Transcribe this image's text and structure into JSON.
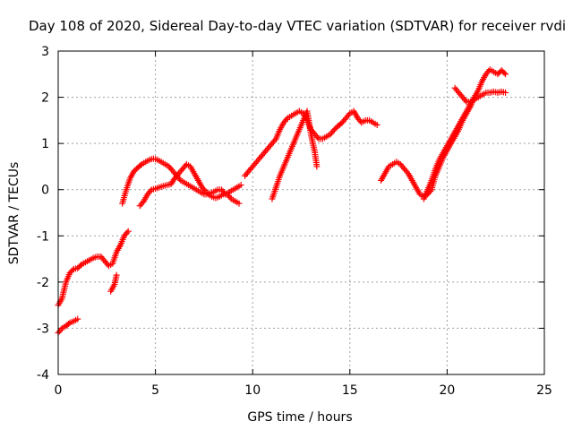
{
  "chart_data": {
    "type": "scatter",
    "title": "Day 108 of 2020, Sidereal Day-to-day VTEC variation (SDTVAR) for receiver rvdi",
    "xlabel": "GPS time / hours",
    "ylabel": "SDTVAR / TECUs",
    "xlim": [
      0,
      25
    ],
    "ylim": [
      -4,
      3
    ],
    "xticks": [
      0,
      5,
      10,
      15,
      20,
      25
    ],
    "yticks": [
      -4,
      -3,
      -2,
      -1,
      0,
      1,
      2,
      3
    ],
    "x_tick_labels": [
      "0",
      "5",
      "10",
      "15",
      "20",
      "25"
    ],
    "y_tick_labels": [
      "-4",
      "-3",
      "-2",
      "-1",
      "0",
      "1",
      "2",
      "3"
    ],
    "grid": true,
    "marker": "+",
    "marker_color": "#ff0000",
    "series": [
      {
        "points": [
          [
            0.0,
            -3.1
          ],
          [
            0.2,
            -3.0
          ],
          [
            0.4,
            -2.95
          ],
          [
            0.6,
            -2.88
          ],
          [
            0.8,
            -2.85
          ],
          [
            1.0,
            -2.8
          ]
        ]
      },
      {
        "points": [
          [
            0.0,
            -2.5
          ],
          [
            0.2,
            -2.35
          ],
          [
            0.4,
            -2.0
          ],
          [
            0.6,
            -1.8
          ],
          [
            0.8,
            -1.72
          ],
          [
            1.0,
            -1.7
          ],
          [
            1.2,
            -1.62
          ],
          [
            1.5,
            -1.55
          ],
          [
            1.8,
            -1.48
          ],
          [
            2.0,
            -1.45
          ],
          [
            2.2,
            -1.45
          ],
          [
            2.4,
            -1.55
          ],
          [
            2.6,
            -1.65
          ],
          [
            2.8,
            -1.6
          ],
          [
            3.0,
            -1.35
          ],
          [
            3.2,
            -1.2
          ],
          [
            3.4,
            -1.0
          ],
          [
            3.6,
            -0.9
          ]
        ]
      },
      {
        "points": [
          [
            2.7,
            -2.2
          ],
          [
            2.9,
            -2.05
          ],
          [
            3.0,
            -1.85
          ]
        ]
      },
      {
        "points": [
          [
            3.3,
            -0.3
          ],
          [
            3.5,
            0.0
          ],
          [
            3.7,
            0.25
          ],
          [
            3.9,
            0.4
          ],
          [
            4.1,
            0.48
          ],
          [
            4.3,
            0.55
          ],
          [
            4.5,
            0.6
          ],
          [
            4.7,
            0.65
          ],
          [
            4.9,
            0.67
          ],
          [
            5.1,
            0.65
          ],
          [
            5.3,
            0.6
          ],
          [
            5.5,
            0.55
          ],
          [
            5.7,
            0.5
          ],
          [
            5.9,
            0.4
          ],
          [
            6.1,
            0.3
          ],
          [
            6.3,
            0.2
          ],
          [
            6.5,
            0.15
          ],
          [
            6.7,
            0.1
          ],
          [
            6.9,
            0.05
          ],
          [
            7.1,
            0.0
          ],
          [
            7.3,
            -0.05
          ],
          [
            7.5,
            -0.1
          ],
          [
            7.7,
            -0.1
          ],
          [
            7.9,
            -0.15
          ],
          [
            8.1,
            -0.18
          ],
          [
            8.3,
            -0.15
          ],
          [
            8.5,
            -0.1
          ],
          [
            8.7,
            -0.1
          ],
          [
            8.9,
            -0.2
          ],
          [
            9.1,
            -0.25
          ],
          [
            9.3,
            -0.3
          ]
        ]
      },
      {
        "points": [
          [
            4.2,
            -0.35
          ],
          [
            4.4,
            -0.25
          ],
          [
            4.6,
            -0.1
          ],
          [
            4.8,
            0.0
          ],
          [
            5.0,
            0.02
          ],
          [
            5.2,
            0.05
          ],
          [
            5.4,
            0.08
          ],
          [
            5.6,
            0.1
          ],
          [
            5.8,
            0.12
          ],
          [
            6.0,
            0.25
          ],
          [
            6.2,
            0.35
          ],
          [
            6.4,
            0.45
          ],
          [
            6.6,
            0.55
          ],
          [
            6.8,
            0.5
          ],
          [
            7.0,
            0.35
          ],
          [
            7.2,
            0.2
          ],
          [
            7.4,
            0.05
          ],
          [
            7.6,
            -0.05
          ],
          [
            7.8,
            -0.08
          ],
          [
            8.0,
            -0.05
          ],
          [
            8.2,
            0.0
          ],
          [
            8.4,
            0.0
          ],
          [
            8.6,
            -0.1
          ],
          [
            8.8,
            -0.05
          ],
          [
            9.0,
            0.0
          ],
          [
            9.2,
            0.05
          ],
          [
            9.4,
            0.1
          ]
        ]
      },
      {
        "points": [
          [
            9.6,
            0.3
          ],
          [
            9.8,
            0.4
          ],
          [
            10.0,
            0.5
          ],
          [
            10.2,
            0.6
          ],
          [
            10.4,
            0.7
          ],
          [
            10.6,
            0.8
          ],
          [
            10.8,
            0.9
          ],
          [
            11.0,
            1.0
          ],
          [
            11.2,
            1.1
          ],
          [
            11.4,
            1.3
          ],
          [
            11.6,
            1.45
          ],
          [
            11.8,
            1.55
          ],
          [
            12.0,
            1.6
          ],
          [
            12.2,
            1.65
          ],
          [
            12.4,
            1.7
          ],
          [
            12.6,
            1.65
          ],
          [
            12.8,
            1.5
          ],
          [
            13.0,
            1.3
          ],
          [
            13.2,
            1.2
          ],
          [
            13.4,
            1.1
          ],
          [
            13.6,
            1.1
          ],
          [
            13.8,
            1.15
          ],
          [
            14.0,
            1.2
          ],
          [
            14.2,
            1.3
          ],
          [
            14.4,
            1.38
          ],
          [
            14.6,
            1.45
          ],
          [
            14.8,
            1.55
          ],
          [
            15.0,
            1.65
          ],
          [
            15.2,
            1.7
          ],
          [
            15.4,
            1.55
          ],
          [
            15.6,
            1.45
          ],
          [
            15.8,
            1.5
          ],
          [
            16.0,
            1.5
          ],
          [
            16.2,
            1.45
          ],
          [
            16.4,
            1.4
          ]
        ]
      },
      {
        "points": [
          [
            11.0,
            -0.2
          ],
          [
            11.2,
            0.05
          ],
          [
            11.4,
            0.3
          ],
          [
            11.6,
            0.5
          ],
          [
            11.8,
            0.7
          ],
          [
            12.0,
            0.9
          ],
          [
            12.2,
            1.1
          ],
          [
            12.4,
            1.3
          ],
          [
            12.6,
            1.5
          ],
          [
            12.8,
            1.7
          ],
          [
            13.0,
            1.2
          ],
          [
            13.2,
            0.8
          ],
          [
            13.3,
            0.5
          ]
        ]
      },
      {
        "points": [
          [
            16.6,
            0.2
          ],
          [
            16.8,
            0.35
          ],
          [
            17.0,
            0.5
          ],
          [
            17.2,
            0.55
          ],
          [
            17.4,
            0.6
          ],
          [
            17.6,
            0.55
          ],
          [
            17.8,
            0.45
          ],
          [
            18.0,
            0.35
          ],
          [
            18.2,
            0.2
          ],
          [
            18.4,
            0.05
          ],
          [
            18.6,
            -0.1
          ],
          [
            18.8,
            -0.15
          ],
          [
            19.0,
            -0.1
          ],
          [
            19.2,
            0.0
          ],
          [
            19.4,
            0.3
          ],
          [
            19.6,
            0.5
          ],
          [
            19.8,
            0.7
          ],
          [
            20.0,
            0.85
          ],
          [
            20.2,
            1.0
          ],
          [
            20.4,
            1.15
          ],
          [
            20.6,
            1.3
          ],
          [
            20.8,
            1.5
          ],
          [
            21.0,
            1.65
          ],
          [
            21.2,
            1.8
          ],
          [
            21.4,
            2.0
          ],
          [
            21.6,
            2.15
          ],
          [
            21.8,
            2.35
          ],
          [
            22.0,
            2.5
          ],
          [
            22.2,
            2.6
          ],
          [
            22.4,
            2.55
          ],
          [
            22.6,
            2.5
          ],
          [
            22.8,
            2.58
          ],
          [
            23.0,
            2.5
          ]
        ]
      },
      {
        "points": [
          [
            18.8,
            -0.2
          ],
          [
            19.0,
            0.0
          ],
          [
            19.2,
            0.2
          ],
          [
            19.4,
            0.45
          ],
          [
            19.6,
            0.65
          ],
          [
            19.8,
            0.8
          ],
          [
            20.0,
            0.95
          ],
          [
            20.2,
            1.1
          ],
          [
            20.4,
            1.25
          ],
          [
            20.6,
            1.4
          ],
          [
            20.8,
            1.55
          ],
          [
            21.0,
            1.7
          ],
          [
            21.2,
            1.85
          ],
          [
            21.4,
            2.0
          ]
        ]
      },
      {
        "points": [
          [
            20.4,
            2.2
          ],
          [
            20.6,
            2.1
          ],
          [
            20.8,
            2.0
          ],
          [
            21.0,
            1.9
          ],
          [
            21.2,
            1.9
          ],
          [
            21.4,
            1.95
          ],
          [
            21.6,
            2.0
          ],
          [
            21.8,
            2.05
          ],
          [
            22.0,
            2.1
          ],
          [
            22.2,
            2.1
          ],
          [
            22.4,
            2.12
          ],
          [
            22.6,
            2.1
          ],
          [
            22.8,
            2.12
          ],
          [
            23.0,
            2.1
          ]
        ]
      }
    ]
  }
}
